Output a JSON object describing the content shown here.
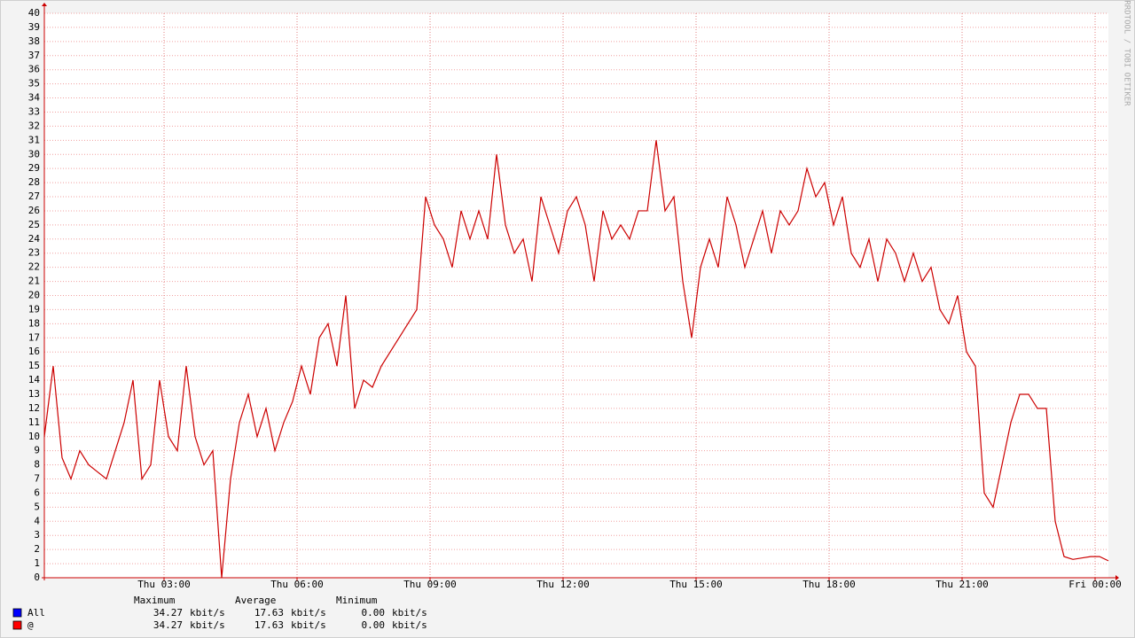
{
  "chart_data": {
    "type": "line",
    "watermark": "RRDTOOL / TOBI OETIKER",
    "x": [
      0.3,
      0.5,
      0.7,
      0.9,
      1.1,
      1.3,
      1.5,
      1.7,
      1.9,
      2.1,
      2.3,
      2.5,
      2.7,
      2.9,
      3.1,
      3.3,
      3.5,
      3.7,
      3.9,
      4.1,
      4.3,
      4.5,
      4.7,
      4.9,
      5.1,
      5.3,
      5.5,
      5.7,
      5.9,
      6.1,
      6.3,
      6.5,
      6.7,
      6.9,
      7.1,
      7.3,
      7.5,
      7.7,
      7.9,
      8.1,
      8.3,
      8.5,
      8.7,
      8.9,
      9.1,
      9.3,
      9.5,
      9.7,
      9.9,
      10.1,
      10.3,
      10.5,
      10.7,
      10.9,
      11.1,
      11.3,
      11.5,
      11.7,
      11.9,
      12.1,
      12.3,
      12.5,
      12.7,
      12.9,
      13.1,
      13.3,
      13.5,
      13.7,
      13.9,
      14.1,
      14.3,
      14.5,
      14.7,
      14.9,
      15.1,
      15.3,
      15.5,
      15.7,
      15.9,
      16.1,
      16.3,
      16.5,
      16.7,
      16.9,
      17.1,
      17.3,
      17.5,
      17.7,
      17.9,
      18.1,
      18.3,
      18.5,
      18.7,
      18.9,
      19.1,
      19.3,
      19.5,
      19.7,
      19.9,
      20.1,
      20.3,
      20.5,
      20.7,
      20.9,
      21.1,
      21.3,
      21.5,
      21.7,
      21.9,
      22.1,
      22.3,
      22.5,
      22.7,
      22.9,
      23.1,
      23.3,
      23.5,
      23.7,
      23.9,
      24.1,
      24.3
    ],
    "series": [
      {
        "color": "#cc0000",
        "values": [
          10,
          15,
          8.5,
          7,
          9,
          8,
          7.5,
          7,
          9,
          11,
          14,
          7,
          8,
          14,
          10,
          9,
          15,
          10,
          8,
          9,
          0,
          7,
          11,
          13,
          10,
          12,
          9,
          11,
          12.5,
          15,
          13,
          17,
          18,
          15,
          20,
          12,
          14,
          13.5,
          15,
          16,
          17,
          18,
          19,
          27,
          25,
          24,
          22,
          26,
          24,
          26,
          24,
          30,
          25,
          23,
          24,
          21,
          27,
          25,
          23,
          26,
          27,
          25,
          21,
          26,
          24,
          25,
          24,
          26,
          26,
          31,
          26,
          27,
          21,
          17,
          22,
          24,
          22,
          27,
          25,
          22,
          24,
          26,
          23,
          26,
          25,
          26,
          29,
          27,
          28,
          25,
          27,
          23,
          22,
          24,
          21,
          24,
          23,
          21,
          23,
          21,
          22,
          19,
          18,
          20,
          16,
          15,
          6,
          5,
          8,
          11,
          13,
          13,
          12,
          12,
          4,
          1.5,
          1.3,
          1.4,
          1.5,
          1.5,
          1.2
        ]
      }
    ],
    "xlim": [
      0.3,
      24.3
    ],
    "ylim": [
      0,
      40
    ],
    "xticks": [
      {
        "value": 3,
        "label": "Thu 03:00"
      },
      {
        "value": 6,
        "label": "Thu 06:00"
      },
      {
        "value": 9,
        "label": "Thu 09:00"
      },
      {
        "value": 12,
        "label": "Thu 12:00"
      },
      {
        "value": 15,
        "label": "Thu 15:00"
      },
      {
        "value": 18,
        "label": "Thu 18:00"
      },
      {
        "value": 21,
        "label": "Thu 21:00"
      },
      {
        "value": 24,
        "label": "Fri 00:00"
      }
    ],
    "yticks": [
      0,
      1,
      2,
      3,
      4,
      5,
      6,
      7,
      8,
      9,
      10,
      11,
      12,
      13,
      14,
      15,
      16,
      17,
      18,
      19,
      20,
      21,
      22,
      23,
      24,
      25,
      26,
      27,
      28,
      29,
      30,
      31,
      32,
      33,
      34,
      35,
      36,
      37,
      38,
      39,
      40
    ],
    "grid": true,
    "legend": {
      "headers": [
        "Maximum",
        "Average",
        "Minimum"
      ],
      "entries": [
        {
          "name": "All",
          "color": "#0000ff",
          "cells": [
            [
              "34.27",
              "kbit/s"
            ],
            [
              "17.63",
              "kbit/s"
            ],
            [
              "0.00",
              "kbit/s"
            ]
          ]
        },
        {
          "name": "@",
          "color": "#ff0000",
          "cells": [
            [
              "34.27",
              "kbit/s"
            ],
            [
              "17.63",
              "kbit/s"
            ],
            [
              "0.00",
              "kbit/s"
            ]
          ]
        }
      ]
    }
  }
}
